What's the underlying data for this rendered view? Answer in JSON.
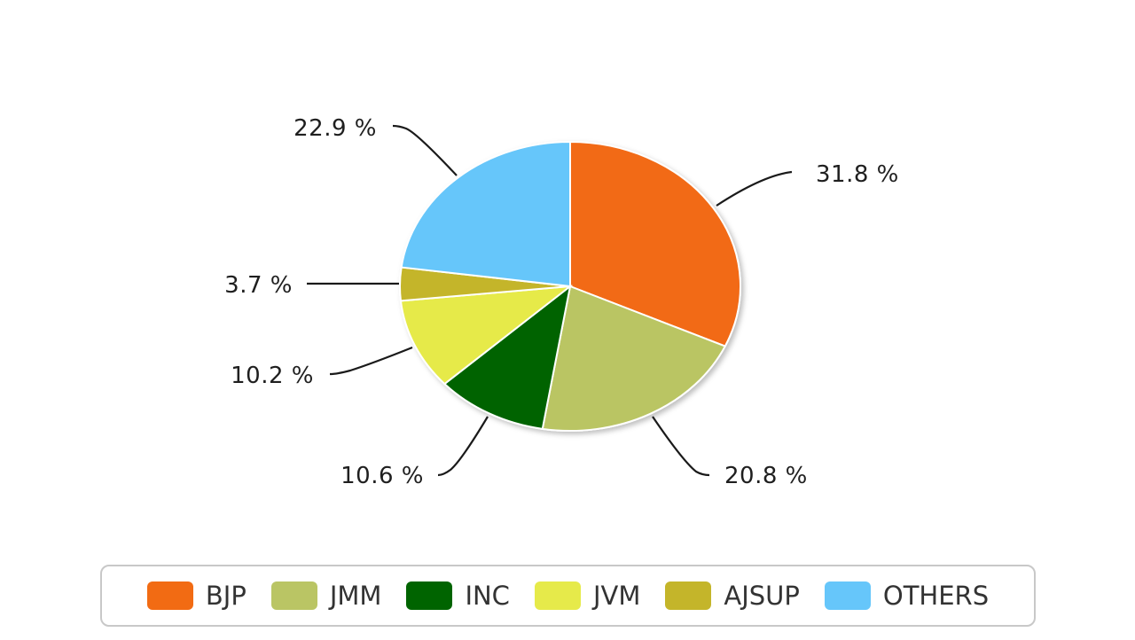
{
  "chart_data": {
    "type": "pie",
    "title": "",
    "slices": [
      {
        "name": "BJP",
        "value": 31.8,
        "label": "31.8 %",
        "color": "#F26B13"
      },
      {
        "name": "JMM",
        "value": 20.8,
        "label": "20.8 %",
        "color": "#BAC564"
      },
      {
        "name": "INC",
        "value": 10.6,
        "label": "10.6 %",
        "color": "#006400"
      },
      {
        "name": "JVM",
        "value": 10.2,
        "label": "10.2 %",
        "color": "#E6EA4A"
      },
      {
        "name": "AJSUP",
        "value": 3.7,
        "label": "3.7 %",
        "color": "#C4B52A"
      },
      {
        "name": "OTHERS",
        "value": 22.9,
        "label": "22.9 %",
        "color": "#66C6FA"
      }
    ],
    "start_angle": "12 o'clock",
    "direction": "clockwise",
    "legend": "bottom-center"
  }
}
